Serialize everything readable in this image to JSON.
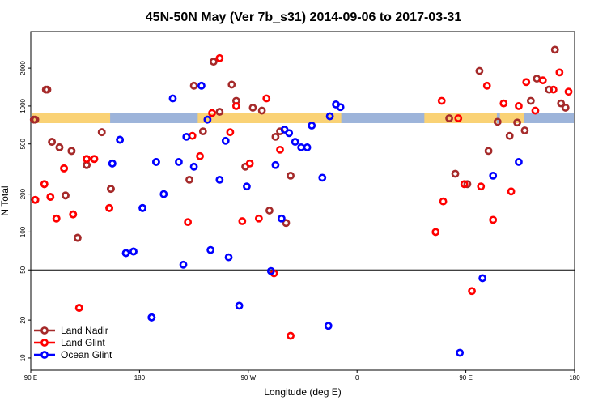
{
  "chart_data": {
    "type": "scatter",
    "title": "45N-50N May (Ver 7b_s31)   2014-09-06 to 2017-03-31",
    "xlabel": "Longitude (deg E)",
    "ylabel": "N Total",
    "x_scale": "linear",
    "y_scale": "log",
    "xlim": [
      "90 E",
      "180"
    ],
    "ylim": [
      8,
      3900
    ],
    "x_ticks": [
      "90 E",
      "180",
      "90 W",
      "0",
      "90 E",
      "180"
    ],
    "y_ticks": [
      10,
      20,
      50,
      100,
      200,
      500,
      1000,
      2000
    ],
    "y_tick_labels": [
      "10",
      "20",
      "50",
      "100",
      "200",
      "500",
      "1000",
      "2000"
    ],
    "reference_line_y": 50,
    "map_band": {
      "y": 800,
      "ocean_color": "#9db4da",
      "land_color": "#fad275"
    },
    "legend": {
      "position": "bottom-left"
    },
    "series": [
      {
        "name": "Land Nadir",
        "color": "#a52a2a",
        "points": [
          {
            "x": "92 E",
            "y": 780
          },
          {
            "x": "100 E",
            "y": 1350
          },
          {
            "x": "104 E",
            "y": 520
          },
          {
            "x": "109 E",
            "y": 470
          },
          {
            "x": "113 E",
            "y": 195
          },
          {
            "x": "117 E",
            "y": 440
          },
          {
            "x": "121 E",
            "y": 90
          },
          {
            "x": "127 E",
            "y": 340
          },
          {
            "x": "137 E",
            "y": 620
          },
          {
            "x": "143 E",
            "y": 220
          },
          {
            "x": "165 W",
            "y": 260
          },
          {
            "x": "162 W",
            "y": 1450
          },
          {
            "x": "156 W",
            "y": 630
          },
          {
            "x": "149 W",
            "y": 2250
          },
          {
            "x": "145 W",
            "y": 900
          },
          {
            "x": "137 W",
            "y": 1480
          },
          {
            "x": "134 W",
            "y": 1100
          },
          {
            "x": "128 W",
            "y": 330
          },
          {
            "x": "123 W",
            "y": 970
          },
          {
            "x": "117 W",
            "y": 920
          },
          {
            "x": "112 W",
            "y": 148
          },
          {
            "x": "108 W",
            "y": 570
          },
          {
            "x": "105 W",
            "y": 630
          },
          {
            "x": "101 W",
            "y": 118
          },
          {
            "x": "98 W",
            "y": 280
          },
          {
            "x": "7 E",
            "y": 800
          },
          {
            "x": "11 E",
            "y": 290
          },
          {
            "x": "19 E",
            "y": 240
          },
          {
            "x": "27 E",
            "y": 1900
          },
          {
            "x": "33 E",
            "y": 440
          },
          {
            "x": "39 E",
            "y": 750
          },
          {
            "x": "47 E",
            "y": 580
          },
          {
            "x": "52 E",
            "y": 740
          },
          {
            "x": "57 E",
            "y": 640
          },
          {
            "x": "61 E",
            "y": 1100
          },
          {
            "x": "65 E",
            "y": 1650
          },
          {
            "x": "73 E",
            "y": 1350
          },
          {
            "x": "77 E",
            "y": 2800
          },
          {
            "x": "81 E",
            "y": 1050
          },
          {
            "x": "84 E",
            "y": 970
          },
          {
            "x": "93 E",
            "y": 780
          },
          {
            "x": "101 E",
            "y": 1350
          },
          {
            "x": "104 E",
            "y": 520
          },
          {
            "x": "109 E",
            "y": 470
          },
          {
            "x": "113 E",
            "y": 195
          },
          {
            "x": "117 E",
            "y": 440
          },
          {
            "x": "121 E",
            "y": 90
          },
          {
            "x": "127 E",
            "y": 340
          },
          {
            "x": "137 E",
            "y": 620
          },
          {
            "x": "143 E",
            "y": 220
          }
        ]
      },
      {
        "name": "Land Glint",
        "color": "#ff0000",
        "points": [
          {
            "x": "93 E",
            "y": 180
          },
          {
            "x": "99 E",
            "y": 240
          },
          {
            "x": "103 E",
            "y": 190
          },
          {
            "x": "107 E",
            "y": 128
          },
          {
            "x": "112 E",
            "y": 320
          },
          {
            "x": "118 E",
            "y": 138
          },
          {
            "x": "122 E",
            "y": 25
          },
          {
            "x": "127 E",
            "y": 380
          },
          {
            "x": "132 E",
            "y": 380
          },
          {
            "x": "142 E",
            "y": 155
          },
          {
            "x": "166 W",
            "y": 120
          },
          {
            "x": "163 W",
            "y": 580
          },
          {
            "x": "158 W",
            "y": 400
          },
          {
            "x": "150 W",
            "y": 880
          },
          {
            "x": "145 W",
            "y": 2400
          },
          {
            "x": "138 W",
            "y": 620
          },
          {
            "x": "134 W",
            "y": 1000
          },
          {
            "x": "130 W",
            "y": 122
          },
          {
            "x": "125 W",
            "y": 350
          },
          {
            "x": "119 W",
            "y": 128
          },
          {
            "x": "114 W",
            "y": 1150
          },
          {
            "x": "109 W",
            "y": 47
          },
          {
            "x": "105 W",
            "y": 450
          },
          {
            "x": "98 W",
            "y": 15
          },
          {
            "x": "2 W",
            "y": 100
          },
          {
            "x": "2 E",
            "y": 1100
          },
          {
            "x": "3 E",
            "y": 175
          },
          {
            "x": "13 E",
            "y": 800
          },
          {
            "x": "17 E",
            "y": 240
          },
          {
            "x": "22 E",
            "y": 34
          },
          {
            "x": "28 E",
            "y": 230
          },
          {
            "x": "32 E",
            "y": 1450
          },
          {
            "x": "36 E",
            "y": 125
          },
          {
            "x": "43 E",
            "y": 1050
          },
          {
            "x": "48 E",
            "y": 210
          },
          {
            "x": "53 E",
            "y": 1000
          },
          {
            "x": "58 E",
            "y": 1550
          },
          {
            "x": "64 E",
            "y": 920
          },
          {
            "x": "69 E",
            "y": 1600
          },
          {
            "x": "76 E",
            "y": 1350
          },
          {
            "x": "80 E",
            "y": 1850
          },
          {
            "x": "86 E",
            "y": 1300
          },
          {
            "x": "93 E",
            "y": 180
          },
          {
            "x": "99 E",
            "y": 240
          },
          {
            "x": "103 E",
            "y": 190
          },
          {
            "x": "107 E",
            "y": 128
          },
          {
            "x": "112 E",
            "y": 320
          },
          {
            "x": "118 E",
            "y": 138
          },
          {
            "x": "122 E",
            "y": 25
          },
          {
            "x": "127 E",
            "y": 380
          },
          {
            "x": "132 E",
            "y": 380
          },
          {
            "x": "142 E",
            "y": 155
          }
        ]
      },
      {
        "name": "Ocean Glint",
        "color": "#0000ff",
        "points": [
          {
            "x": "144 E",
            "y": 350
          },
          {
            "x": "149 E",
            "y": 540
          },
          {
            "x": "153 E",
            "y": 68
          },
          {
            "x": "158 E",
            "y": 70
          },
          {
            "x": "164 E",
            "y": 155
          },
          {
            "x": "170 E",
            "y": 21
          },
          {
            "x": "173 E",
            "y": 360
          },
          {
            "x": "178 E",
            "y": 200
          },
          {
            "x": "176 W",
            "y": 1150
          },
          {
            "x": "172 W",
            "y": 360
          },
          {
            "x": "169 W",
            "y": 55
          },
          {
            "x": "167 W",
            "y": 570
          },
          {
            "x": "162 W",
            "y": 330
          },
          {
            "x": "157 W",
            "y": 1450
          },
          {
            "x": "153 W",
            "y": 780
          },
          {
            "x": "151 W",
            "y": 72
          },
          {
            "x": "145 W",
            "y": 260
          },
          {
            "x": "141 W",
            "y": 530
          },
          {
            "x": "139 W",
            "y": 63
          },
          {
            "x": "132 W",
            "y": 26
          },
          {
            "x": "127 W",
            "y": 230
          },
          {
            "x": "111 W",
            "y": 49
          },
          {
            "x": "108 W",
            "y": 340
          },
          {
            "x": "104 W",
            "y": 128
          },
          {
            "x": "102 W",
            "y": 650
          },
          {
            "x": "99 W",
            "y": 610
          },
          {
            "x": "95 W",
            "y": 520
          },
          {
            "x": "91 W",
            "y": 470
          },
          {
            "x": "87 W",
            "y": 470
          },
          {
            "x": "84 W",
            "y": 700
          },
          {
            "x": "77 W",
            "y": 270
          },
          {
            "x": "73 W",
            "y": 18
          },
          {
            "x": "72 W",
            "y": 830
          },
          {
            "x": "68 W",
            "y": 1030
          },
          {
            "x": "65 W",
            "y": 980
          },
          {
            "x": "14 E",
            "y": 11
          },
          {
            "x": "29 E",
            "y": 43
          },
          {
            "x": "36 E",
            "y": 280
          },
          {
            "x": "53 E",
            "y": 360
          },
          {
            "x": "144 E",
            "y": 350
          },
          {
            "x": "149 E",
            "y": 540
          },
          {
            "x": "153 E",
            "y": 68
          },
          {
            "x": "158 E",
            "y": 70
          },
          {
            "x": "164 E",
            "y": 155
          },
          {
            "x": "170 E",
            "y": 21
          },
          {
            "x": "173 E",
            "y": 360
          }
        ]
      }
    ]
  }
}
